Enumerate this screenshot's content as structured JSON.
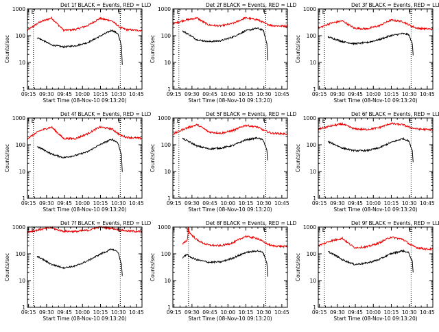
{
  "figure": {
    "xtick_labels": [
      "09:15",
      "09:30",
      "09:45",
      "10:00",
      "10:15",
      "10:30",
      "10:45"
    ],
    "ytick_labels": [
      "1",
      "10",
      "100",
      "1000"
    ],
    "ylabel": "Counts/sec",
    "xlabel": "Start Time (08-Nov-10 09:13:20)",
    "marker_label": "E",
    "colors": {
      "red": "#ee0000",
      "black": "#000000"
    }
  },
  "chart_data": [
    {
      "type": "line",
      "title": "Det 1f BLACK = Events, RED = LLD",
      "xlabel": "Start Time (08-Nov-10 09:13:20)",
      "ylabel": "Counts/sec",
      "xlim": [
        0,
        95
      ],
      "ylim": [
        1,
        1000
      ],
      "yscale": "log",
      "markers": [
        5,
        77
      ],
      "series": [
        {
          "name": "RED = LLD",
          "color": "#ee0000",
          "x": [
            0,
            10,
            20,
            25,
            30,
            40,
            50,
            60,
            70,
            77,
            82,
            90,
            95
          ],
          "values": [
            160,
            320,
            460,
            270,
            160,
            170,
            240,
            440,
            360,
            200,
            170,
            160,
            155
          ]
        },
        {
          "name": "BLACK = Events",
          "color": "#000000",
          "x": [
            8,
            12,
            20,
            30,
            40,
            50,
            60,
            70,
            75,
            78,
            79
          ],
          "values": [
            85,
            70,
            45,
            38,
            42,
            55,
            95,
            160,
            120,
            40,
            4
          ]
        }
      ]
    },
    {
      "type": "line",
      "title": "Det 2f BLACK = Events, RED = LLD",
      "xlabel": "Start Time (08-Nov-10 09:13:20)",
      "ylabel": "Counts/sec",
      "xlim": [
        0,
        95
      ],
      "ylim": [
        1,
        1000
      ],
      "yscale": "log",
      "markers": [
        5,
        77
      ],
      "series": [
        {
          "name": "RED = LLD",
          "color": "#ee0000",
          "x": [
            0,
            10,
            20,
            25,
            30,
            40,
            50,
            60,
            70,
            77,
            82,
            90,
            95
          ],
          "values": [
            280,
            380,
            460,
            330,
            250,
            230,
            290,
            460,
            400,
            280,
            240,
            230,
            230
          ]
        },
        {
          "name": "BLACK = Events",
          "color": "#000000",
          "x": [
            8,
            12,
            20,
            30,
            40,
            50,
            60,
            70,
            75,
            78,
            79
          ],
          "values": [
            150,
            120,
            70,
            60,
            65,
            90,
            150,
            190,
            160,
            50,
            7
          ]
        }
      ]
    },
    {
      "type": "line",
      "title": "Det 3f BLACK = Events, RED = LLD",
      "xlabel": "Start Time (08-Nov-10 09:13:20)",
      "ylabel": "Counts/sec",
      "xlim": [
        0,
        95
      ],
      "ylim": [
        1,
        1000
      ],
      "yscale": "log",
      "markers": [
        5,
        77
      ],
      "series": [
        {
          "name": "RED = LLD",
          "color": "#ee0000",
          "x": [
            0,
            10,
            20,
            25,
            30,
            40,
            50,
            60,
            70,
            77,
            82,
            90,
            95
          ],
          "values": [
            190,
            290,
            360,
            260,
            190,
            180,
            230,
            380,
            340,
            230,
            190,
            180,
            175
          ]
        },
        {
          "name": "BLACK = Events",
          "color": "#000000",
          "x": [
            8,
            12,
            20,
            30,
            40,
            50,
            60,
            70,
            75,
            78,
            79
          ],
          "values": [
            90,
            80,
            60,
            50,
            55,
            70,
            100,
            120,
            110,
            50,
            12
          ]
        }
      ]
    },
    {
      "type": "line",
      "title": "Det 4f BLACK = Events, RED = LLD",
      "xlabel": "Start Time (08-Nov-10 09:13:20)",
      "ylabel": "Counts/sec",
      "xlim": [
        0,
        95
      ],
      "ylim": [
        1,
        1000
      ],
      "yscale": "log",
      "markers": [
        5,
        77
      ],
      "series": [
        {
          "name": "RED = LLD",
          "color": "#ee0000",
          "x": [
            0,
            10,
            20,
            25,
            30,
            40,
            50,
            60,
            70,
            77,
            82,
            90,
            95
          ],
          "values": [
            170,
            330,
            460,
            280,
            170,
            170,
            260,
            460,
            390,
            230,
            190,
            180,
            170
          ]
        },
        {
          "name": "BLACK = Events",
          "color": "#000000",
          "x": [
            8,
            12,
            20,
            30,
            40,
            50,
            60,
            70,
            75,
            78,
            79
          ],
          "values": [
            85,
            70,
            45,
            33,
            40,
            55,
            100,
            160,
            120,
            40,
            5
          ]
        }
      ]
    },
    {
      "type": "line",
      "title": "Det 5f BLACK = Events, RED = LLD",
      "xlabel": "Start Time (08-Nov-10 09:13:20)",
      "ylabel": "Counts/sec",
      "xlim": [
        0,
        95
      ],
      "ylim": [
        1,
        1000
      ],
      "yscale": "log",
      "markers": [
        5,
        77
      ],
      "series": [
        {
          "name": "RED = LLD",
          "color": "#ee0000",
          "x": [
            0,
            10,
            20,
            25,
            30,
            40,
            50,
            60,
            70,
            77,
            82,
            90,
            95
          ],
          "values": [
            250,
            400,
            560,
            420,
            300,
            270,
            340,
            530,
            460,
            320,
            270,
            260,
            250
          ]
        },
        {
          "name": "BLACK = Events",
          "color": "#000000",
          "x": [
            8,
            12,
            20,
            30,
            40,
            50,
            60,
            70,
            75,
            78,
            79
          ],
          "values": [
            170,
            140,
            90,
            70,
            75,
            95,
            150,
            180,
            150,
            60,
            18
          ]
        }
      ]
    },
    {
      "type": "line",
      "title": "Det 6f BLACK = Events, RED = LLD",
      "xlabel": "Start Time (08-Nov-10 09:13:20)",
      "ylabel": "Counts/sec",
      "xlim": [
        0,
        95
      ],
      "ylim": [
        1,
        1000
      ],
      "yscale": "log",
      "markers": [
        5,
        77
      ],
      "series": [
        {
          "name": "RED = LLD",
          "color": "#ee0000",
          "x": [
            0,
            10,
            20,
            25,
            30,
            40,
            50,
            60,
            70,
            77,
            82,
            90,
            95
          ],
          "values": [
            380,
            500,
            600,
            480,
            390,
            370,
            430,
            620,
            560,
            430,
            390,
            370,
            360
          ]
        },
        {
          "name": "BLACK = Events",
          "color": "#000000",
          "x": [
            8,
            12,
            20,
            30,
            40,
            50,
            60,
            70,
            75,
            78,
            79
          ],
          "values": [
            130,
            110,
            75,
            60,
            60,
            75,
            120,
            170,
            140,
            60,
            16
          ]
        }
      ]
    },
    {
      "type": "line",
      "title": "Det 7f BLACK = Events, RED = LLD",
      "xlabel": "Start Time (08-Nov-10 09:13:20)",
      "ylabel": "Counts/sec",
      "xlim": [
        0,
        95
      ],
      "ylim": [
        1,
        1000
      ],
      "yscale": "log",
      "markers": [
        5,
        77
      ],
      "series": [
        {
          "name": "RED = LLD",
          "color": "#ee0000",
          "x": [
            0,
            10,
            20,
            25,
            30,
            40,
            50,
            60,
            70,
            77,
            82,
            90,
            95
          ],
          "values": [
            650,
            800,
            950,
            780,
            700,
            680,
            760,
            1000,
            900,
            780,
            720,
            690,
            680
          ]
        },
        {
          "name": "BLACK = Events",
          "color": "#000000",
          "x": [
            8,
            12,
            20,
            30,
            40,
            50,
            60,
            70,
            75,
            78,
            79
          ],
          "values": [
            80,
            65,
            40,
            30,
            35,
            55,
            95,
            150,
            120,
            40,
            10
          ]
        }
      ]
    },
    {
      "type": "line",
      "title": "Det 8f BLACK = Events, RED = LLD",
      "xlabel": "Start Time (08-Nov-10 09:13:20)",
      "ylabel": "Counts/sec",
      "xlim": [
        0,
        95
      ],
      "ylim": [
        1,
        1000
      ],
      "yscale": "log",
      "markers": [
        13,
        77
      ],
      "series": [
        {
          "name": "RED = LLD",
          "color": "#ee0000",
          "x": [
            8,
            12,
            13,
            14,
            20,
            25,
            30,
            40,
            50,
            60,
            70,
            77,
            82,
            90,
            95
          ],
          "values": [
            230,
            320,
            1000,
            600,
            330,
            250,
            210,
            200,
            260,
            450,
            380,
            250,
            200,
            190,
            185
          ]
        },
        {
          "name": "BLACK = Events",
          "color": "#000000",
          "x": [
            8,
            12,
            13,
            20,
            30,
            40,
            50,
            60,
            70,
            75,
            78,
            79
          ],
          "values": [
            70,
            100,
            80,
            60,
            48,
            50,
            70,
            110,
            130,
            110,
            45,
            9
          ]
        }
      ]
    },
    {
      "type": "line",
      "title": "Det 9f BLACK = Events, RED = LLD",
      "xlabel": "Start Time (08-Nov-10 09:13:20)",
      "ylabel": "Counts/sec",
      "xlim": [
        0,
        95
      ],
      "ylim": [
        1,
        1000
      ],
      "yscale": "log",
      "markers": [
        5,
        77
      ],
      "series": [
        {
          "name": "RED = LLD",
          "color": "#ee0000",
          "x": [
            0,
            10,
            20,
            25,
            30,
            40,
            50,
            60,
            70,
            77,
            82,
            90,
            95
          ],
          "values": [
            200,
            300,
            380,
            250,
            170,
            180,
            250,
            420,
            350,
            210,
            170,
            150,
            150
          ]
        },
        {
          "name": "BLACK = Events",
          "color": "#000000",
          "x": [
            8,
            12,
            20,
            30,
            40,
            50,
            60,
            70,
            75,
            78,
            79
          ],
          "values": [
            120,
            100,
            60,
            40,
            45,
            60,
            100,
            130,
            110,
            50,
            14
          ]
        }
      ]
    }
  ]
}
